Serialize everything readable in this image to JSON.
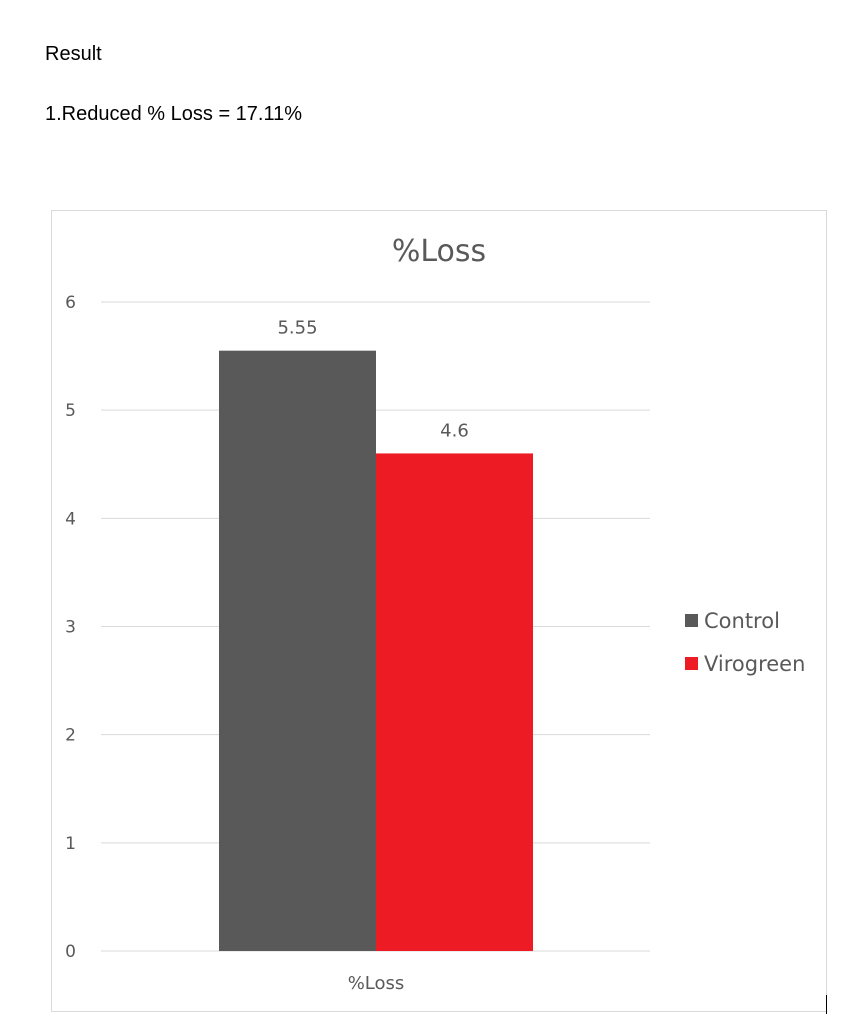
{
  "document": {
    "heading": "Result",
    "result_line": "1.Reduced % Loss = 17.11%"
  },
  "chart_data": {
    "type": "bar",
    "title": "%Loss",
    "categories": [
      "%Loss"
    ],
    "series": [
      {
        "name": "Control",
        "values": [
          5.55
        ],
        "color": "#595959",
        "label": "5.55"
      },
      {
        "name": "Virogreen",
        "values": [
          4.6
        ],
        "color": "#ed1c24",
        "label": "4.6"
      }
    ],
    "xlabel": "",
    "ylabel": "",
    "ylim": [
      0,
      6
    ],
    "yticks": [
      "0",
      "1",
      "2",
      "3",
      "4",
      "5",
      "6"
    ],
    "grid": true,
    "legend_position": "right",
    "colors": {
      "grid": "#d9d9d9",
      "text": "#595959"
    }
  }
}
